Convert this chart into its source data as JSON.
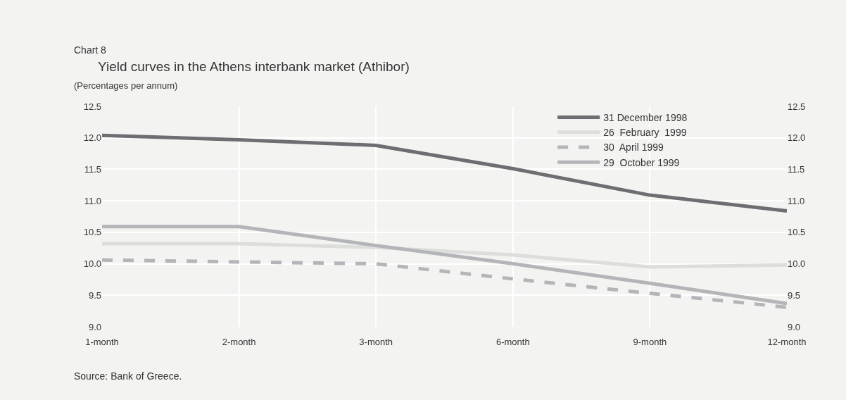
{
  "chart_data": {
    "type": "line",
    "title": "Yield curves in the Athens interbank market (Athibor)",
    "subtitle": "(Percentages per annum)",
    "annotations": [
      "Chart 8",
      "Source: Bank of Greece."
    ],
    "categories": [
      "1-month",
      "2-month",
      "3-month",
      "6-month",
      "9-month",
      "12-month"
    ],
    "series": [
      {
        "name": "31 December 1998",
        "color": "#6d6d72",
        "values": [
          12.04,
          11.97,
          11.88,
          11.51,
          11.09,
          10.84
        ]
      },
      {
        "name": "26  February  1999",
        "color": "#dcdedc",
        "values": [
          10.32,
          10.32,
          10.26,
          10.14,
          9.95,
          9.98
        ]
      },
      {
        "name": "30  April 1999",
        "color": "#b4b5b8",
        "line_style": "dashed",
        "values": [
          10.06,
          10.03,
          10.0,
          9.76,
          9.53,
          9.31
        ]
      },
      {
        "name": "29  October 1999",
        "color": "#b4b5b8",
        "values": [
          10.59,
          10.59,
          10.29,
          10.0,
          9.69,
          9.37
        ]
      }
    ],
    "ylim": [
      9.0,
      12.5
    ],
    "yticks": [
      {
        "value": 9.0,
        "label": "9.0"
      },
      {
        "value": 9.5,
        "label": "9.5"
      },
      {
        "value": 10.0,
        "label": "10.0"
      },
      {
        "value": 10.5,
        "label": "10.5"
      },
      {
        "value": 11.0,
        "label": "11.0"
      },
      {
        "value": 11.5,
        "label": "11.5"
      },
      {
        "value": 12.0,
        "label": "12.0"
      },
      {
        "value": 12.5,
        "label": "12.5"
      }
    ],
    "y2lim": [
      9.0,
      12.5
    ],
    "y2ticks": [
      {
        "value": 9.0,
        "label": "9.0"
      },
      {
        "value": 9.5,
        "label": "9.5"
      },
      {
        "value": 10.0,
        "label": "10.0"
      },
      {
        "value": 10.5,
        "label": "10.5"
      },
      {
        "value": 11.0,
        "label": "11.0"
      },
      {
        "value": 11.5,
        "label": "11.5"
      },
      {
        "value": 12.0,
        "label": "12.0"
      },
      {
        "value": 12.5,
        "label": "12.5"
      }
    ],
    "grid": true,
    "legend": "top right",
    "line_style": "solid",
    "marker": "none"
  }
}
